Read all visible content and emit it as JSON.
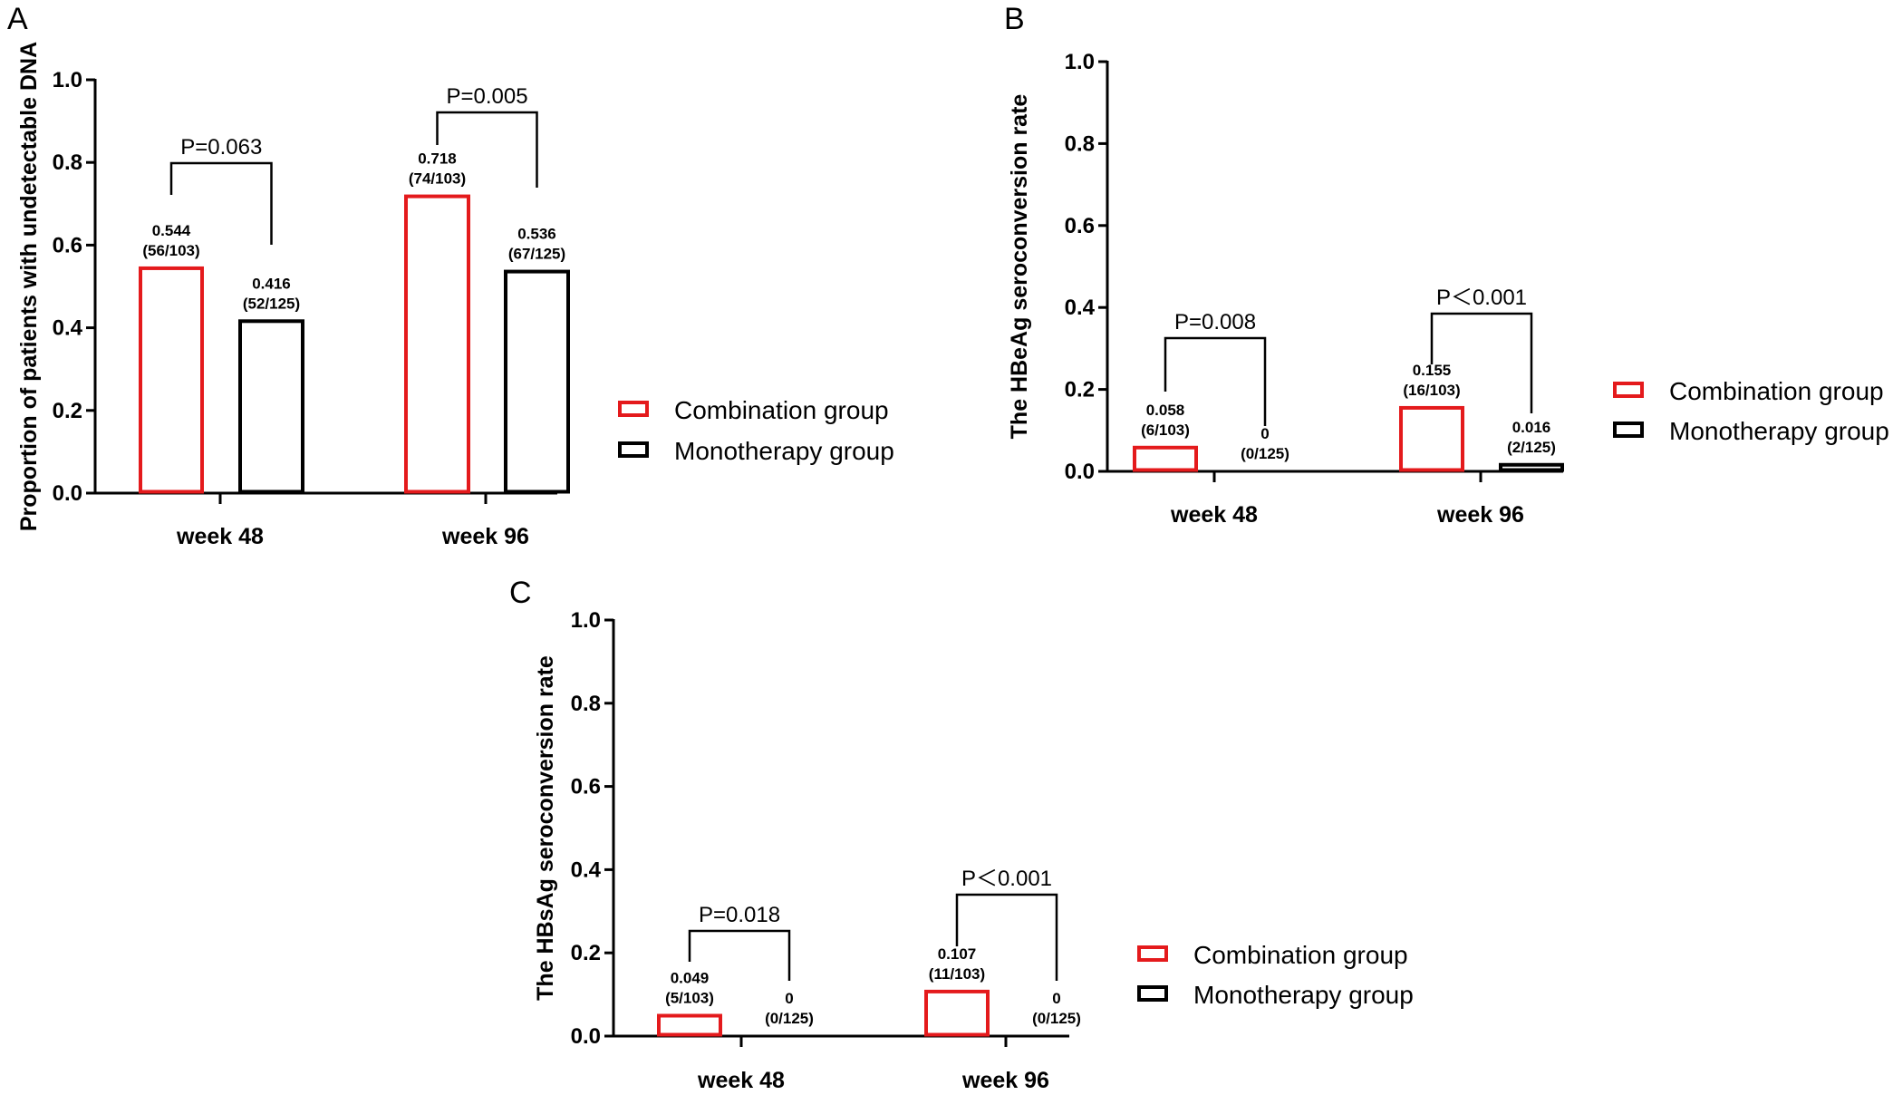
{
  "chart_data": [
    {
      "type": "bar",
      "panel": "A",
      "title": "",
      "ylabel": "Proportion of patients with undetectable DNA",
      "xlabel": "",
      "ylim": [
        0,
        1.0
      ],
      "yticks": [
        "0.0",
        "0.2",
        "0.4",
        "0.6",
        "0.8",
        "1.0"
      ],
      "categories": [
        "week 48",
        "week 96"
      ],
      "series": [
        {
          "name": "Combination group",
          "color": "#e41a1c",
          "values": [
            0.544,
            0.718
          ],
          "labels": [
            [
              "0.544",
              "(56/103)"
            ],
            [
              "0.718",
              "(74/103)"
            ]
          ]
        },
        {
          "name": "Monotherapy group",
          "color": "#000000",
          "values": [
            0.416,
            0.536
          ],
          "labels": [
            [
              "0.416",
              "(52/125)"
            ],
            [
              "0.536",
              "(67/125)"
            ]
          ]
        }
      ],
      "pvalues": [
        "P=0.063",
        "P=0.005"
      ],
      "legend": [
        "Combination group",
        "Monotherapy group"
      ]
    },
    {
      "type": "bar",
      "panel": "B",
      "title": "",
      "ylabel": "The HBeAg seroconversion rate",
      "xlabel": "",
      "ylim": [
        0,
        1.0
      ],
      "yticks": [
        "0.0",
        "0.2",
        "0.4",
        "0.6",
        "0.8",
        "1.0"
      ],
      "categories": [
        "week 48",
        "week 96"
      ],
      "series": [
        {
          "name": "Combination group",
          "color": "#e41a1c",
          "values": [
            0.058,
            0.155
          ],
          "labels": [
            [
              "0.058",
              "(6/103)"
            ],
            [
              "0.155",
              "(16/103)"
            ]
          ]
        },
        {
          "name": "Monotherapy group",
          "color": "#000000",
          "values": [
            0,
            0.016
          ],
          "labels": [
            [
              "0",
              "(0/125)"
            ],
            [
              "0.016",
              "(2/125)"
            ]
          ]
        }
      ],
      "pvalues": [
        "P=0.008",
        "P＜0.001"
      ],
      "legend": [
        "Combination group",
        "Monotherapy group"
      ]
    },
    {
      "type": "bar",
      "panel": "C",
      "title": "",
      "ylabel": "The HBsAg seroconversion rate",
      "xlabel": "",
      "ylim": [
        0,
        1.0
      ],
      "yticks": [
        "0.0",
        "0.2",
        "0.4",
        "0.6",
        "0.8",
        "1.0"
      ],
      "categories": [
        "week 48",
        "week 96"
      ],
      "series": [
        {
          "name": "Combination group",
          "color": "#e41a1c",
          "values": [
            0.049,
            0.107
          ],
          "labels": [
            [
              "0.049",
              "(5/103)"
            ],
            [
              "0.107",
              "(11/103)"
            ]
          ]
        },
        {
          "name": "Monotherapy group",
          "color": "#000000",
          "values": [
            0,
            0
          ],
          "labels": [
            [
              "0",
              "(0/125)"
            ],
            [
              "0",
              "(0/125)"
            ]
          ]
        }
      ],
      "pvalues": [
        "P=0.018",
        "P＜0.001"
      ],
      "legend": [
        "Combination group",
        "Monotherapy group"
      ]
    }
  ]
}
